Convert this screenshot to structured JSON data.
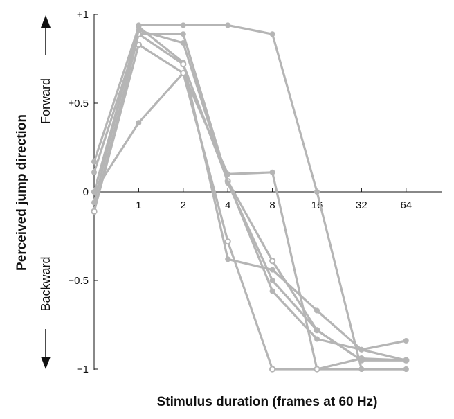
{
  "chart_data": {
    "type": "line",
    "xlabel": "Stimulus duration (frames at 60 Hz)",
    "ylabel": "Perceived jump direction",
    "direction_labels": {
      "forward": "Forward",
      "backward": "Backward"
    },
    "x_scale": "log2",
    "x_ticks": [
      1,
      2,
      4,
      8,
      16,
      32,
      64
    ],
    "x_tick_labels": [
      "1",
      "2",
      "4",
      "8",
      "16",
      "32",
      "64"
    ],
    "x_origin": 0.5,
    "y_ticks": [
      1,
      0.5,
      0,
      -0.5,
      -1
    ],
    "y_tick_labels": [
      "+1",
      "+0.5",
      "0",
      "−0.5",
      "−1"
    ],
    "ylim": [
      -1,
      1
    ],
    "series": [
      {
        "style": "filled",
        "points": [
          [
            0.5,
            0.17
          ],
          [
            1,
            0.93
          ],
          [
            2,
            0.73
          ],
          [
            4,
            -0.38
          ],
          [
            8,
            -0.44
          ],
          [
            16,
            -0.67
          ],
          [
            32,
            -0.89
          ],
          [
            64,
            -0.95
          ]
        ]
      },
      {
        "style": "filled",
        "points": [
          [
            0.5,
            0.11
          ],
          [
            1,
            0.89
          ],
          [
            2,
            0.89
          ],
          [
            4,
            0.06
          ],
          [
            8,
            -0.56
          ],
          [
            16,
            -0.83
          ],
          [
            32,
            -0.89
          ],
          [
            64,
            -0.84
          ]
        ]
      },
      {
        "style": "filled",
        "points": [
          [
            0.5,
            0.0
          ],
          [
            1,
            0.39
          ],
          [
            2,
            0.67
          ],
          [
            4,
            0.1
          ],
          [
            8,
            0.11
          ],
          [
            16,
            -1.0
          ],
          [
            32,
            -1.0
          ],
          [
            64,
            -1.0
          ]
        ]
      },
      {
        "style": "filled",
        "points": [
          [
            0.5,
            -0.06
          ],
          [
            1,
            0.94
          ],
          [
            2,
            0.94
          ],
          [
            4,
            0.94
          ],
          [
            8,
            0.89
          ],
          [
            16,
            0.0
          ],
          [
            32,
            -1.0
          ],
          [
            64,
            -1.0
          ]
        ]
      },
      {
        "style": "open",
        "points": [
          [
            0.5,
            -0.11
          ],
          [
            1,
            0.83
          ],
          [
            2,
            0.67
          ],
          [
            4,
            -0.28
          ],
          [
            8,
            -1.0
          ],
          [
            16,
            -1.0
          ],
          [
            32,
            -0.94
          ],
          [
            64,
            -0.95
          ]
        ]
      },
      {
        "style": "open",
        "points": [
          [
            0.5,
            -0.11
          ],
          [
            1,
            0.89
          ],
          [
            2,
            0.72
          ],
          [
            4,
            0.06
          ],
          [
            8,
            -0.39
          ],
          [
            16,
            -0.78
          ],
          [
            32,
            -0.95
          ],
          [
            64,
            -0.95
          ]
        ]
      },
      {
        "style": "filled",
        "points": [
          [
            0.5,
            0.0
          ],
          [
            1,
            0.91
          ],
          [
            2,
            0.84
          ],
          [
            4,
            0.05
          ],
          [
            8,
            -0.5
          ],
          [
            16,
            -0.78
          ],
          [
            32,
            -0.95
          ],
          [
            64,
            -0.95
          ]
        ]
      }
    ],
    "grid": false,
    "legend": "none"
  }
}
